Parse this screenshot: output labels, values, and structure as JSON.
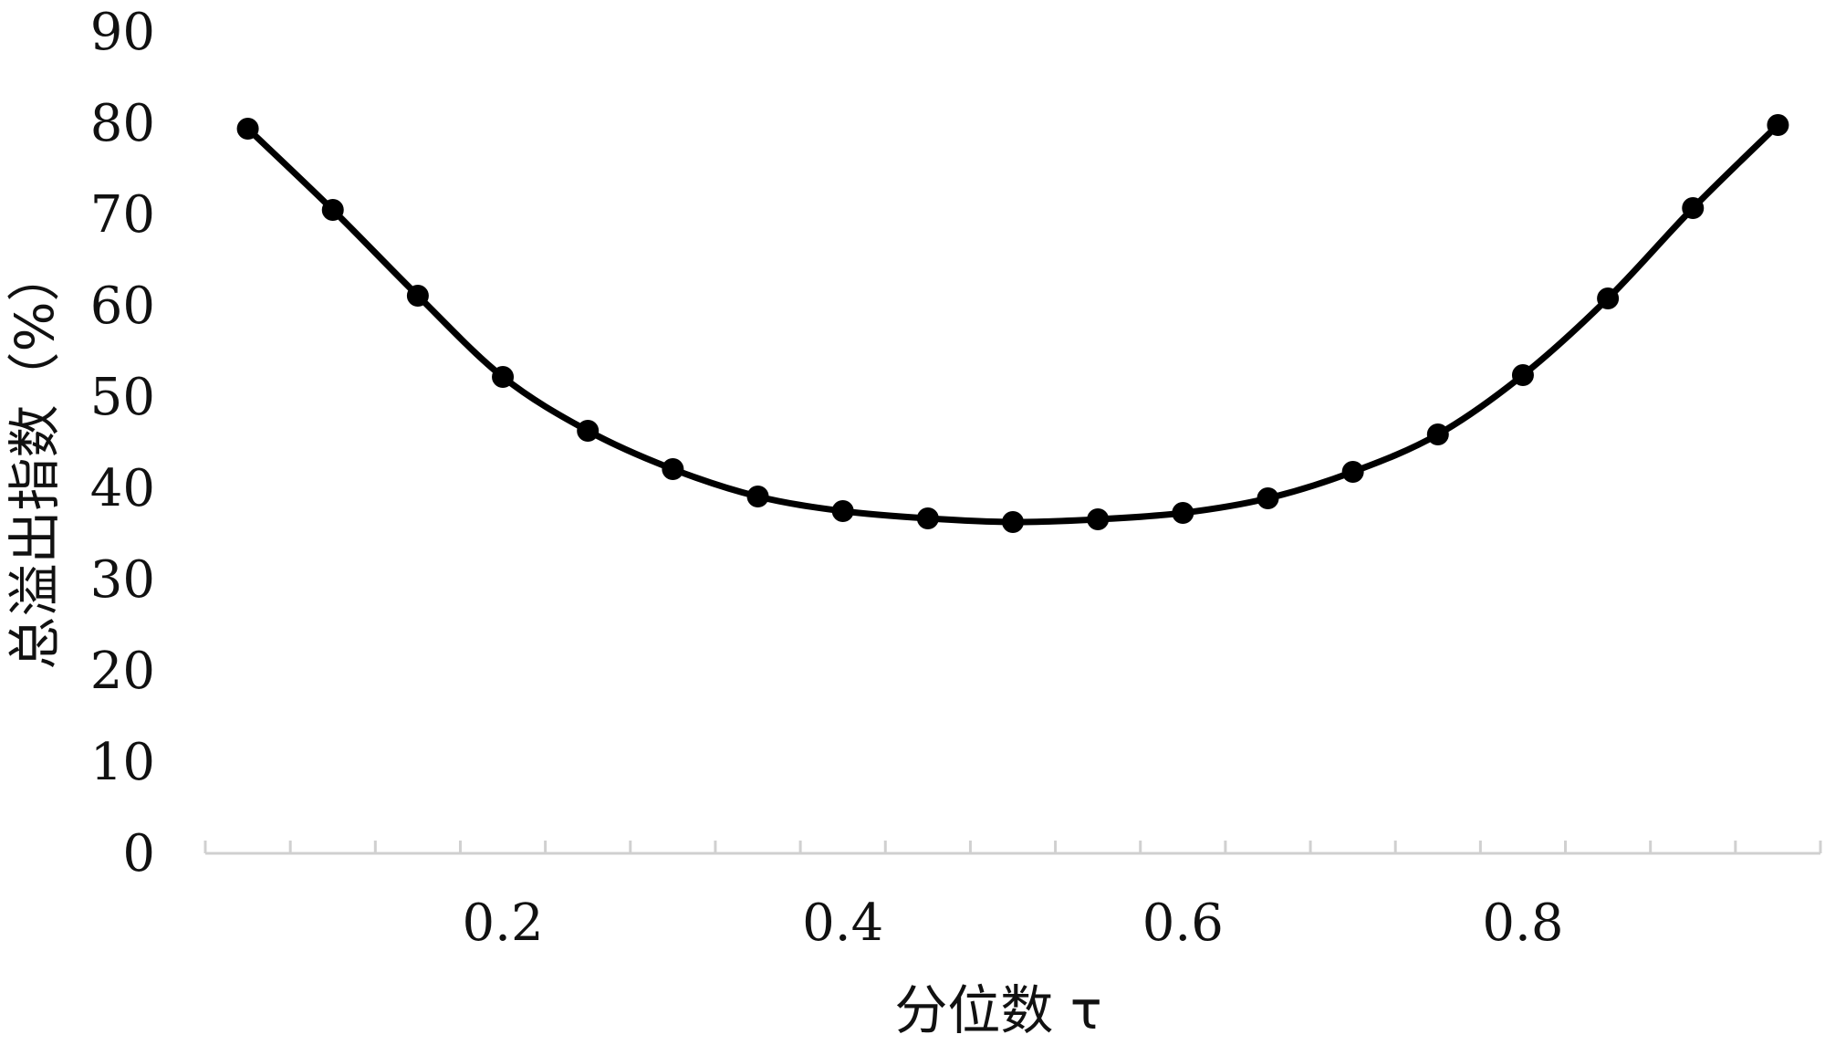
{
  "chart_data": {
    "type": "line",
    "title": "",
    "xlabel": "分位数 τ",
    "ylabel": "总溢出指数（%）",
    "xlim": [
      0.025,
      0.975
    ],
    "ylim": [
      0,
      90
    ],
    "x_ticks": [
      "0.2",
      "0.4",
      "0.6",
      "0.8"
    ],
    "y_ticks": [
      "0",
      "10",
      "20",
      "30",
      "40",
      "50",
      "60",
      "70",
      "80",
      "90"
    ],
    "grid": false,
    "legend": "none",
    "series": [
      {
        "x": [
          0.05,
          0.1,
          0.15,
          0.2,
          0.25,
          0.3,
          0.35,
          0.4,
          0.45,
          0.5,
          0.55,
          0.6,
          0.65,
          0.7,
          0.75,
          0.8,
          0.85,
          0.9,
          0.95
        ],
        "values": [
          79.4,
          70.5,
          61.1,
          52.2,
          46.3,
          42.1,
          39.1,
          37.5,
          36.7,
          36.3,
          36.6,
          37.3,
          38.9,
          41.8,
          45.9,
          52.4,
          60.8,
          70.7,
          79.8
        ],
        "color": "#000000"
      }
    ]
  }
}
